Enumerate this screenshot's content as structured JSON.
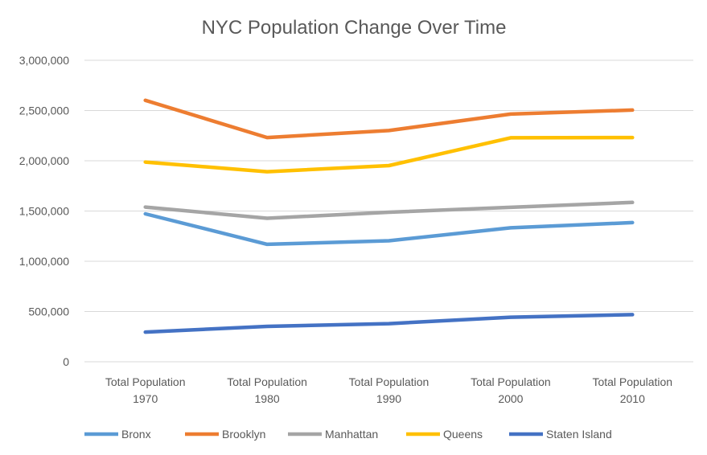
{
  "chart_data": {
    "type": "line",
    "title": "NYC Population Change Over Time",
    "xlabel": "",
    "ylabel": "",
    "categories": [
      [
        "Total Population",
        "1970"
      ],
      [
        "Total Population",
        "1980"
      ],
      [
        "Total Population",
        "1990"
      ],
      [
        "Total Population",
        "2000"
      ],
      [
        "Total Population",
        "2010"
      ]
    ],
    "ylim": [
      0,
      3000000
    ],
    "yticks": [
      0,
      500000,
      1000000,
      1500000,
      2000000,
      2500000,
      3000000
    ],
    "ytick_labels": [
      "0",
      "500,000",
      "1,000,000",
      "1,500,000",
      "2,000,000",
      "2,500,000",
      "3,000,000"
    ],
    "grid": true,
    "legend_position": "bottom",
    "series": [
      {
        "name": "Bronx",
        "color": "#5b9bd5",
        "values": [
          1472000,
          1169000,
          1204000,
          1333000,
          1385000
        ]
      },
      {
        "name": "Brooklyn",
        "color": "#ed7d31",
        "values": [
          2602000,
          2231000,
          2301000,
          2465000,
          2505000
        ]
      },
      {
        "name": "Manhattan",
        "color": "#a5a5a5",
        "values": [
          1539000,
          1428000,
          1488000,
          1537000,
          1586000
        ]
      },
      {
        "name": "Queens",
        "color": "#ffc000",
        "values": [
          1987000,
          1891000,
          1952000,
          2229000,
          2231000
        ]
      },
      {
        "name": "Staten Island",
        "color": "#4472c4",
        "values": [
          295000,
          352000,
          379000,
          443000,
          469000
        ]
      }
    ]
  }
}
